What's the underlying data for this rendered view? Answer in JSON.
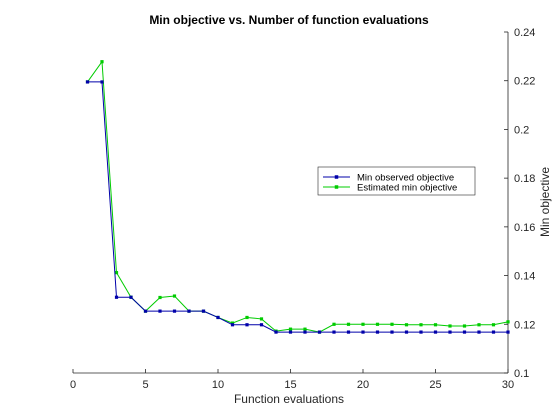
{
  "chart_data": {
    "type": "line",
    "title": "Min objective vs. Number of function evaluations",
    "xlabel": "Function evaluations",
    "ylabel": "Min objective",
    "xlim": [
      0,
      30
    ],
    "ylim": [
      0.1,
      0.24
    ],
    "x_ticks": [
      "0",
      "5",
      "10",
      "15",
      "20",
      "25",
      "30"
    ],
    "y_ticks": [
      "0.1",
      "0.12",
      "0.14",
      "0.16",
      "0.18",
      "0.2",
      "0.22",
      "0.24"
    ],
    "y_axis_position": "right",
    "grid": false,
    "legend_position": "right-middle",
    "x": [
      1,
      2,
      3,
      4,
      5,
      6,
      7,
      8,
      9,
      10,
      11,
      12,
      13,
      14,
      15,
      16,
      17,
      18,
      19,
      20,
      21,
      22,
      23,
      24,
      25,
      26,
      27,
      28,
      29,
      30
    ],
    "series": [
      {
        "name": "Min observed objective",
        "color": "#0000aa",
        "values": [
          0.2195,
          0.2195,
          0.1311,
          0.1311,
          0.1254,
          0.1254,
          0.1254,
          0.1254,
          0.1254,
          0.1228,
          0.1198,
          0.1198,
          0.1198,
          0.1168,
          0.1168,
          0.1168,
          0.1168,
          0.1168,
          0.1168,
          0.1168,
          0.1168,
          0.1168,
          0.1168,
          0.1168,
          0.1168,
          0.1168,
          0.1168,
          0.1168,
          0.1168,
          0.1168
        ]
      },
      {
        "name": "Estimated min objective",
        "color": "#00cc00",
        "values": [
          0.2195,
          0.2278,
          0.1412,
          0.1311,
          0.1254,
          0.131,
          0.1316,
          0.1254,
          0.1254,
          0.1228,
          0.1205,
          0.1228,
          0.1222,
          0.1172,
          0.118,
          0.118,
          0.1168,
          0.12,
          0.12,
          0.12,
          0.12,
          0.12,
          0.1198,
          0.1198,
          0.1198,
          0.1193,
          0.1193,
          0.1198,
          0.1198,
          0.121
        ]
      }
    ]
  }
}
